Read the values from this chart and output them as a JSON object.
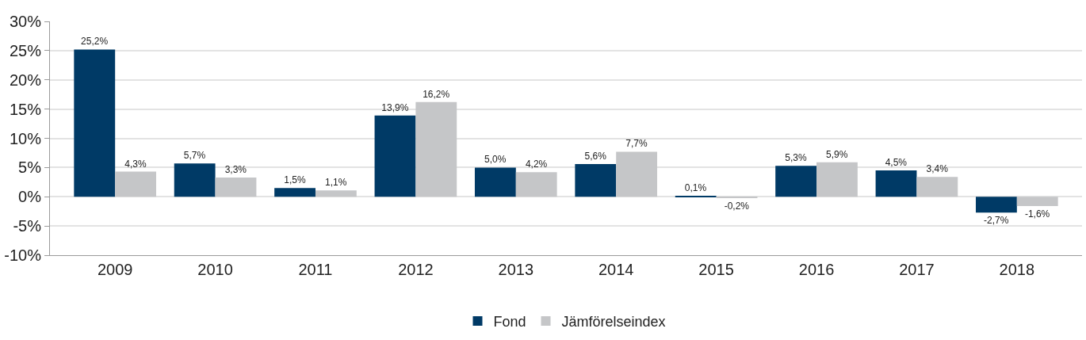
{
  "chart_data": {
    "type": "bar",
    "categories": [
      "2009",
      "2010",
      "2011",
      "2012",
      "2013",
      "2014",
      "2015",
      "2016",
      "2017",
      "2018"
    ],
    "series": [
      {
        "name": "Fond",
        "color": "#003a66",
        "values": [
          25.2,
          5.7,
          1.5,
          13.9,
          5.0,
          5.6,
          0.1,
          5.3,
          4.5,
          -2.7
        ],
        "value_labels": [
          "25,2%",
          "5,7%",
          "1,5%",
          "13,9%",
          "5,0%",
          "5,6%",
          "0,1%",
          "5,3%",
          "4,5%",
          "-2,7%"
        ]
      },
      {
        "name": "Jämförelseindex",
        "color": "#c5c6c8",
        "values": [
          4.3,
          3.3,
          1.1,
          16.2,
          4.2,
          7.7,
          -0.2,
          5.9,
          3.4,
          -1.6
        ],
        "value_labels": [
          "4,3%",
          "3,3%",
          "1,1%",
          "16,2%",
          "4,2%",
          "7,7%",
          "-0,2%",
          "5,9%",
          "3,4%",
          "-1,6%"
        ]
      }
    ],
    "ylim": [
      -10,
      30
    ],
    "yticks": [
      {
        "value": -10,
        "label": "-10%"
      },
      {
        "value": -5,
        "label": "-5%"
      },
      {
        "value": 0,
        "label": "0%"
      },
      {
        "value": 5,
        "label": "5%"
      },
      {
        "value": 10,
        "label": "10%"
      },
      {
        "value": 15,
        "label": "15%"
      },
      {
        "value": 20,
        "label": "20%"
      },
      {
        "value": 25,
        "label": "25%"
      },
      {
        "value": 30,
        "label": "30%"
      }
    ],
    "grid": "y",
    "legend": "bottom"
  }
}
